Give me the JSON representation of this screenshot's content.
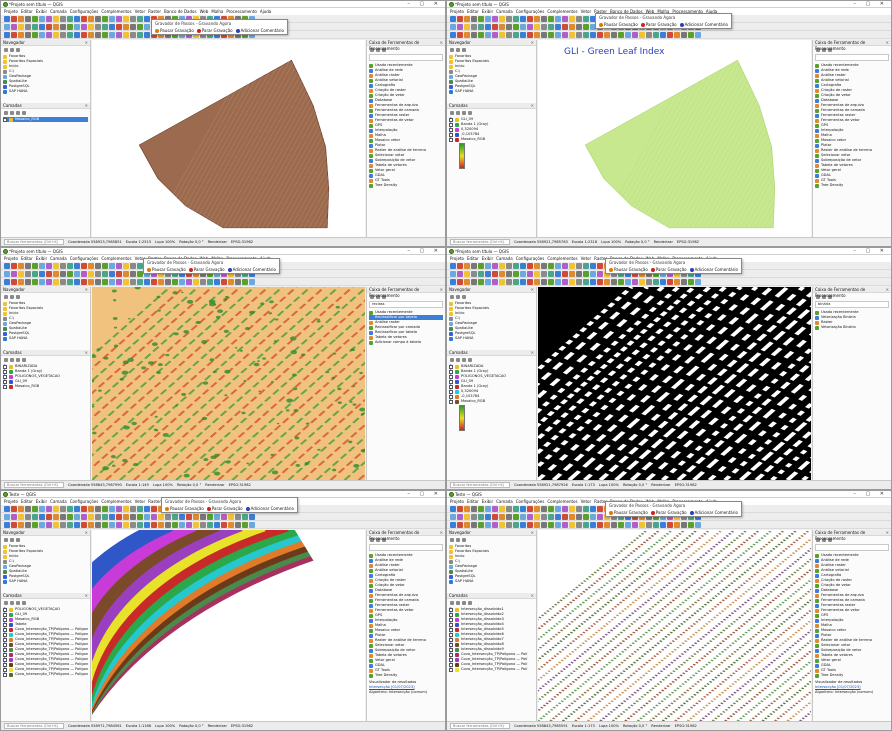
{
  "common": {
    "menu": [
      "Projeto",
      "Editar",
      "Exibir",
      "Camada",
      "Configurações",
      "Complementos",
      "Vetor",
      "Raster",
      "Banco de Dados",
      "Web",
      "Malha",
      "Processamento",
      "Ajuda"
    ],
    "browser_items": [
      "Favoritos",
      "Favoritos Espaciais",
      "Início",
      "C:\\",
      "GeoPackage",
      "SpatiaLite",
      "PostgreSQL",
      "SAP HANA"
    ],
    "dock_browser_title": "Navegador",
    "dock_layers_title": "Camadas",
    "dock_processing_title": "Caixa de Ferramentas de Processamento",
    "processing_items": [
      "Usado recentemente",
      "Análise de rede",
      "Análise raster",
      "Análise vetorial",
      "Cartografia",
      "Criação de raster",
      "Criação de vetor",
      "Database",
      "Ferramentas de arquivo",
      "Ferramentas de camada",
      "Ferramentas raster",
      "Ferramentas de vetor",
      "GPS",
      "Interpolação",
      "Malha",
      "Mosaico vetor",
      "Plotar",
      "Raster de análise de terreno",
      "Selecionar vetor",
      "Sobreposição de vetor",
      "Tabela de vetores",
      "Vetor geral",
      "GDAL",
      "GT Tools",
      "Tree Density"
    ],
    "dialog_title": "Gravador de Passos - Gravando Agora",
    "dialog_pause": "Pausar Gravação",
    "dialog_stop": "Parar Gravação",
    "dialog_comment": "Adicionar Comentário",
    "locator_placeholder": "Buscar ferramentas (Ctrl+K)",
    "status_labels": [
      "Coordenada",
      "Escala",
      "Lupa",
      "Rotação",
      "Renderizar",
      "EPSG:31982"
    ],
    "title_suffix": "— QGIS"
  },
  "panels": [
    {
      "title": "*Projeto sem título",
      "layers": [
        "Mosaico_RGB"
      ],
      "coordinate": "558923,7985851",
      "scale": "1:2515",
      "zoom": "100%",
      "rotation": "0,0 °",
      "canvas": "rgb"
    },
    {
      "title": "*Projeto sem título",
      "overlay_title": "GLI - Green Leaf Index",
      "layers": [
        "GLI_09",
        "Banda 1 (Gray)",
        "0,320094",
        "-0,103784",
        "Mosaico_RGB"
      ],
      "coordinate": "558921,7985763",
      "scale": "1:2318",
      "zoom": "100%",
      "rotation": "0,0 °",
      "canvas": "gli"
    },
    {
      "title": "*Projeto sem título",
      "layers": [
        "BINARIZADA",
        "Banda 1 (Gray)",
        "POLIGONOS_VEGETACAO",
        "GLI_09",
        "Mosaico_RGB"
      ],
      "processing_items": [
        "Usado recentemente",
        "Reclassificar por tabela",
        "Análise raster",
        "Reclassificar por camada",
        "Reclassificar por tabela",
        "Tabela de vetores",
        "Adicionar campo à tabela"
      ],
      "search_value": "reclass",
      "coordinate": "558843,7987990",
      "scale": "1:149",
      "zoom": "100%",
      "rotation": "0,0 °",
      "canvas": "gli_class"
    },
    {
      "title": "*Projeto sem título",
      "layers": [
        "BINARIZADA",
        "Banda 1 (Gray)",
        "POLIGONOS_VEGETACAO",
        "GLI_09",
        "Banda 1 (Gray)",
        "0,320094",
        "-0,103784",
        "Mosaico_RGB"
      ],
      "processing_items": [
        "Usado recentemente",
        "Vetorização Binária",
        "Raster",
        "Vetorização Binária"
      ],
      "search_value": "binária",
      "coordinate": "558921,7987926",
      "scale": "1:173",
      "zoom": "100%",
      "rotation": "0,0 °",
      "canvas": "binary"
    },
    {
      "title": "Teste",
      "layers": [
        "POLIGONOS_VEGETAÇÃO",
        "GLI_09",
        "Mosaico_RGB",
        "Tabela",
        "Cova_Intersecção_TP/Polígono — Polígono_1",
        "Cova_Intersecção_TP/Polígono — Polígono_2",
        "Cova_Intersecção_TP/Polígono — Polígono_3",
        "Cova_Intersecção_TP/Polígono — Polígono_4",
        "Cova_Intersecção_TP/Polígono — Polígono_5",
        "Cova_Intersecção_TP/Polígono — Polígono_6",
        "Cova_Intersecção_TP/Polígono — Polígono_7",
        "Cova_Intersecção_TP/Polígono — Polígono_8",
        "Cova_Intersecção_TP/Polígono — Polígono_9",
        "Cova_Intersecção_TP/Polígono — Polígono_10"
      ],
      "results_title": "Visualizador de resultados",
      "results_line": "Intersecção [01/07/2023]",
      "algorithm": "Algoritmo: Intersecção (comum)",
      "coordinate": "558971,7984561",
      "scale": "1:1166",
      "zoom": "100%",
      "rotation": "0,0 °",
      "canvas": "strips"
    },
    {
      "title": "Teste",
      "layers": [
        "Intersecção_dissolvido1",
        "Intersecção_dissolvido2",
        "Intersecção_dissolvido3",
        "Intersecção_dissolvido4",
        "Intersecção_dissolvido5",
        "Intersecção_dissolvido6",
        "Intersecção_dissolvido7",
        "Intersecção_dissolvido8",
        "Intersecção_dissolvido9",
        "Cova_Intersecção_TP/Polígono — Polí",
        "Cova_Intersecção_TP/Polígono — Polí",
        "Cova_Intersecção_TP/Polígono — Polí",
        "Cova_Intersecção_TP/Polígono — Polí"
      ],
      "results_title": "Visualizador de resultados",
      "results_line": "Intersecção [01/07/2023]",
      "algorithm": "Algoritmo: Intersecção (comum)",
      "coordinate": "558843,7985591",
      "scale": "1:173",
      "zoom": "100%",
      "rotation": "0,0 °",
      "canvas": "points"
    }
  ],
  "colors": {
    "qgis_green": "#5aa02c",
    "selection": "#3d7fd6",
    "gli_title": "#2b3fbf",
    "stop_red": "#d02020",
    "pause_orange": "#e07b00"
  }
}
